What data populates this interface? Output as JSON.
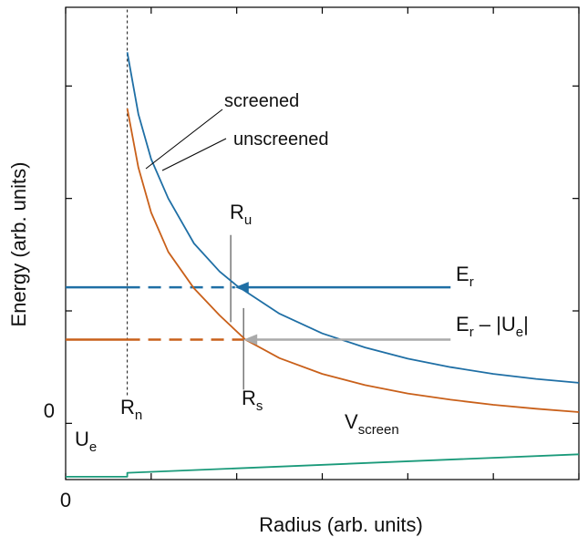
{
  "chart_data": {
    "type": "line",
    "title": "",
    "xlabel": "Radius (arb. units)",
    "ylabel": "Energy (arb. units)",
    "xlim": [
      0,
      6
    ],
    "ylim": [
      -1,
      7.4
    ],
    "x_ticks": [
      0,
      1,
      2,
      3,
      4,
      5,
      6
    ],
    "y_ticks": [
      0,
      2,
      4,
      6
    ],
    "tick_labels": {
      "x0": "0",
      "y0": "0"
    },
    "series": [
      {
        "name": "screened",
        "color": "#1f6fa5",
        "x": [
          0.72,
          0.85,
          1.0,
          1.2,
          1.5,
          1.8,
          2.0,
          2.5,
          3.0,
          3.5,
          4.0,
          4.5,
          5.0,
          5.5,
          6.0
        ],
        "y": [
          6.6,
          5.5,
          4.7,
          4.0,
          3.2,
          2.7,
          2.45,
          1.95,
          1.6,
          1.35,
          1.15,
          1.0,
          0.88,
          0.79,
          0.72
        ]
      },
      {
        "name": "unscreened",
        "color": "#c9601a",
        "x": [
          0.72,
          0.85,
          1.0,
          1.2,
          1.5,
          1.8,
          2.1,
          2.5,
          3.0,
          3.5,
          4.0,
          4.5,
          5.0,
          5.5,
          6.0
        ],
        "y": [
          5.6,
          4.55,
          3.75,
          3.05,
          2.4,
          1.92,
          1.49,
          1.16,
          0.88,
          0.68,
          0.53,
          0.42,
          0.33,
          0.26,
          0.2
        ]
      },
      {
        "name": "Vscreen",
        "color": "#1a9a7a",
        "x": [
          0,
          0.72,
          0.72,
          6.0
        ],
        "y": [
          -0.95,
          -0.95,
          -0.88,
          -0.55
        ]
      }
    ],
    "levels": [
      {
        "name": "E_r",
        "color": "#1f6fa5",
        "y": 2.42,
        "solid_to_x": 0.72,
        "dashed_to_x": 1.98
      },
      {
        "name": "E_r - |U_e|",
        "color": "#c9601a",
        "y": 1.49,
        "solid_to_x": 0.72,
        "dashed_to_x": 2.08
      }
    ],
    "arrows": [
      {
        "color": "#1f6fa5",
        "from_x": 4.5,
        "to_x": 1.98,
        "y": 2.42
      },
      {
        "color": "#aaaaaa",
        "from_x": 4.5,
        "to_x": 2.08,
        "y": 1.49
      }
    ],
    "markers": [
      {
        "label": "R_n",
        "x": 0.72,
        "y_from": 0.5,
        "y_to": 7.4,
        "style": "dotted"
      },
      {
        "label": "R_u",
        "x": 1.93,
        "y_from": 1.8,
        "y_to": 3.35,
        "style": "solid"
      },
      {
        "label": "R_s",
        "x": 2.08,
        "y_from": 0.6,
        "y_to": 2.05,
        "style": "solid"
      }
    ],
    "annotations": {
      "screened": "screened",
      "unscreened": "unscreened",
      "Rn": {
        "base": "R",
        "sub": "n"
      },
      "Ru": {
        "base": "R",
        "sub": "u"
      },
      "Rs": {
        "base": "R",
        "sub": "s"
      },
      "Er": {
        "base": "E",
        "sub": "r"
      },
      "ErUe": {
        "pre": "E",
        "sub1": "r",
        "mid": " – |U",
        "sub2": "e",
        "post": "|"
      },
      "Ue": {
        "base": "U",
        "sub": "e"
      },
      "Vscreen": {
        "base": "V",
        "sub": "screen"
      }
    }
  }
}
